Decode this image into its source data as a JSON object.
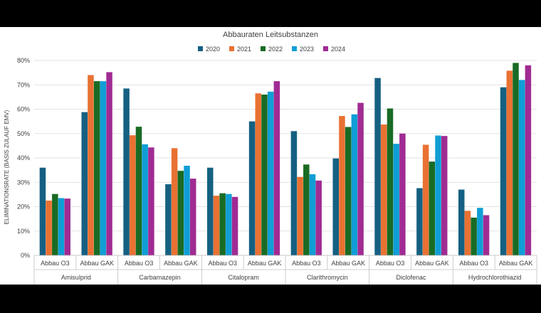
{
  "chart_data": {
    "type": "bar",
    "title": "Abbauraten Leitsubstanzen",
    "ylabel": "ELIMINATIONSRATE (BASIS ZULAUF EMV)",
    "xlabel": "",
    "ylim": [
      0,
      80
    ],
    "y_ticks": [
      "0%",
      "10%",
      "20%",
      "30%",
      "40%",
      "50%",
      "60%",
      "70%",
      "80%"
    ],
    "grid": true,
    "legend_position": "top",
    "groups": [
      {
        "name": "Amisulprid",
        "subcategories": [
          "Abbau O3",
          "Abbau GAK"
        ]
      },
      {
        "name": "Carbamazepin",
        "subcategories": [
          "Abbau O3",
          "Abbau GAK"
        ]
      },
      {
        "name": "Citalopram",
        "subcategories": [
          "Abbau O3",
          "Abbau GAK"
        ]
      },
      {
        "name": "Clarithromycin",
        "subcategories": [
          "Abbau O3",
          "Abbau GAK"
        ]
      },
      {
        "name": "Diclofenac",
        "subcategories": [
          "Abbau O3",
          "Abbau GAK"
        ]
      },
      {
        "name": "Hydrochlorothiazid",
        "subcategories": [
          "Abbau O3",
          "Abbau GAK"
        ]
      }
    ],
    "series": [
      {
        "name": "2020",
        "color": "#156082",
        "values": [
          36,
          58.8,
          68.5,
          29.2,
          36,
          55,
          51,
          39.8,
          72.8,
          27.6,
          27,
          69
        ]
      },
      {
        "name": "2021",
        "color": "#E97132",
        "values": [
          22.5,
          74,
          49.3,
          44,
          24.5,
          66.5,
          32.2,
          57.2,
          53.7,
          45.4,
          18.3,
          75.8
        ]
      },
      {
        "name": "2022",
        "color": "#196B24",
        "values": [
          25.2,
          71.5,
          52.8,
          34.7,
          25.5,
          66,
          37.3,
          52.7,
          60.3,
          38.5,
          15.5,
          79
        ]
      },
      {
        "name": "2023",
        "color": "#0F9ED5",
        "values": [
          23.5,
          71.5,
          45.6,
          36.8,
          25.2,
          67.2,
          33.3,
          57.9,
          45.8,
          49.2,
          19.5,
          72
        ]
      },
      {
        "name": "2024",
        "color": "#A02B93",
        "values": [
          23.3,
          75.2,
          44.3,
          31.5,
          24,
          71.5,
          30.7,
          62.6,
          50,
          49,
          16.5,
          78
        ]
      }
    ]
  }
}
